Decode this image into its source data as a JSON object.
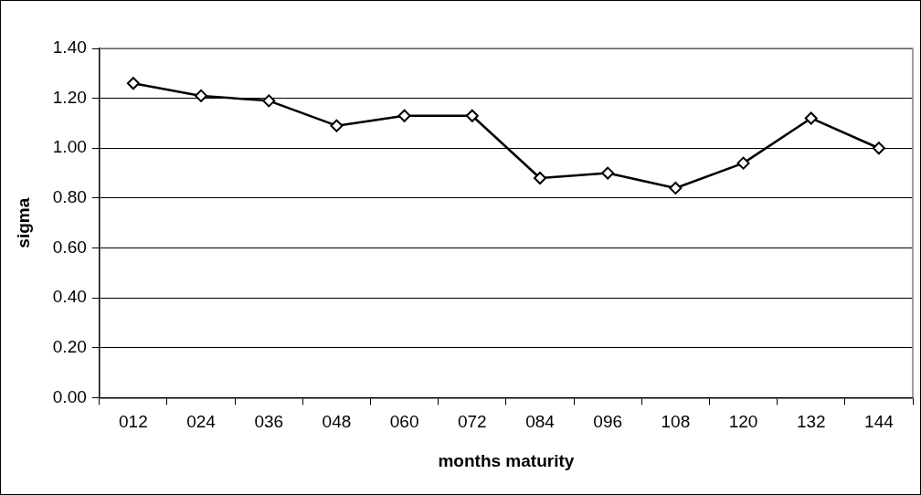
{
  "chart_data": {
    "type": "line",
    "xlabel": "months maturity",
    "ylabel": "sigma",
    "categories": [
      "012",
      "024",
      "036",
      "048",
      "060",
      "072",
      "084",
      "096",
      "108",
      "120",
      "132",
      "144"
    ],
    "series": [
      {
        "color": "#000000",
        "values": [
          1.26,
          1.21,
          1.19,
          1.09,
          1.13,
          1.13,
          0.88,
          0.9,
          0.84,
          0.94,
          1.12,
          1.0
        ]
      }
    ],
    "ylim": [
      0,
      1.4
    ],
    "yticks": [
      {
        "value": 0,
        "label": "0.00"
      },
      {
        "value": 0.2,
        "label": "0.20"
      },
      {
        "value": 0.4,
        "label": "0.40"
      },
      {
        "value": 0.6,
        "label": "0.60"
      },
      {
        "value": 0.8,
        "label": "0.80"
      },
      {
        "value": 1,
        "label": "1.00"
      },
      {
        "value": 1.2,
        "label": "1.20"
      },
      {
        "value": 1.4,
        "label": "1.40"
      }
    ],
    "grid": "y",
    "marker": "diamond",
    "line_style": "solid"
  }
}
